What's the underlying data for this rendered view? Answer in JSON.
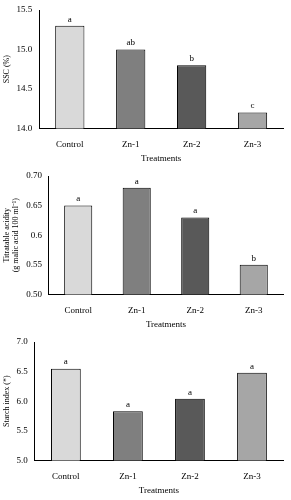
{
  "chart_data": [
    {
      "type": "bar",
      "categories": [
        "Control",
        "Zn-1",
        "Zn-2",
        "Zn-3"
      ],
      "values": [
        15.3,
        15.0,
        14.8,
        14.2
      ],
      "annotations": [
        "a",
        "ab",
        "b",
        "c"
      ],
      "colors": [
        "#d9d9d9",
        "#7f7f7f",
        "#595959",
        "#a6a6a6"
      ],
      "xlabel": "Treatments",
      "ylabel": "SSC (%)",
      "ylim": [
        14,
        15.5
      ],
      "yticks": [
        {
          "value": 14,
          "label": "14.0"
        },
        {
          "value": 14.5,
          "label": "14.5"
        },
        {
          "value": 15,
          "label": "15.0"
        },
        {
          "value": 15.5,
          "label": "15.5"
        }
      ],
      "grid": false
    },
    {
      "type": "bar",
      "categories": [
        "Control",
        "Zn-1",
        "Zn-2",
        "Zn-3"
      ],
      "values": [
        0.65,
        0.68,
        0.63,
        0.55
      ],
      "annotations": [
        "a",
        "a",
        "a",
        "b"
      ],
      "colors": [
        "#d9d9d9",
        "#7f7f7f",
        "#595959",
        "#a6a6a6"
      ],
      "xlabel": "Treatments",
      "ylabel": "Titratable acidity (g malic acid 100 ml⁻¹)",
      "ylim": [
        0.5,
        0.7
      ],
      "yticks": [
        {
          "value": 0.5,
          "label": "0.50"
        },
        0.55,
        0.6,
        0.65,
        {
          "value": 0.7,
          "label": "0.70"
        }
      ],
      "grid": false
    },
    {
      "type": "bar",
      "categories": [
        "Control",
        "Zn-1",
        "Zn-2",
        "Zn-3"
      ],
      "values": [
        6.55,
        5.83,
        6.04,
        6.48
      ],
      "annotations": [
        "a",
        "a",
        "a",
        "a"
      ],
      "colors": [
        "#d9d9d9",
        "#7f7f7f",
        "#595959",
        "#a6a6a6"
      ],
      "xlabel": "Treatments",
      "ylabel": "Starch index (*)",
      "ylim": [
        5,
        7
      ],
      "yticks": [
        {
          "value": 5,
          "label": "5.0"
        },
        {
          "value": 5.5,
          "label": "5.5"
        },
        {
          "value": 6,
          "label": "6.0"
        },
        {
          "value": 6.5,
          "label": "6.5"
        },
        {
          "value": 7,
          "label": "7.0"
        }
      ],
      "grid": false
    }
  ]
}
